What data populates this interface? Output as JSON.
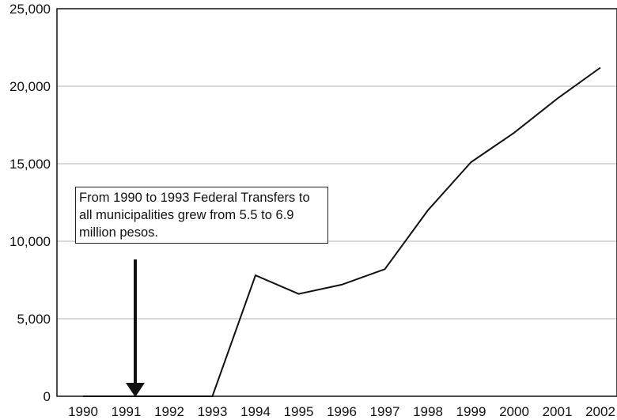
{
  "chart_data": {
    "type": "line",
    "title": "",
    "xlabel": "",
    "ylabel": "",
    "ylim": [
      0,
      25000
    ],
    "yticks": [
      "0",
      "5,000",
      "10,000",
      "15,000",
      "20,000",
      "25,000"
    ],
    "x_tick_labels": [
      "1990",
      "1991",
      "1992",
      "1993",
      "1994",
      "1995",
      "1996",
      "1997",
      "1998",
      "1999",
      "2000",
      "2001",
      "2002"
    ],
    "grid": true,
    "series": [
      {
        "values": [
          {
            "x": 1990,
            "y": 0
          },
          {
            "x": 1991,
            "y": 0
          },
          {
            "x": 1992,
            "y": 0
          },
          {
            "x": 1993,
            "y": 0
          },
          {
            "x": 1994,
            "y": 7800
          },
          {
            "x": 1995,
            "y": 6600
          },
          {
            "x": 1996,
            "y": 7200
          },
          {
            "x": 1997,
            "y": 8200
          },
          {
            "x": 1998,
            "y": 12000
          },
          {
            "x": 1999,
            "y": 15100
          },
          {
            "x": 2000,
            "y": 17000
          },
          {
            "x": 2001,
            "y": 19200
          },
          {
            "x": 2002,
            "y": 21200
          }
        ]
      }
    ],
    "annotation": {
      "text": "From 1990 to 1993 Federal Transfers to all municipalities grew from 5.5 to 6.9 million pesos.",
      "arrow_target_year": "1991"
    }
  }
}
